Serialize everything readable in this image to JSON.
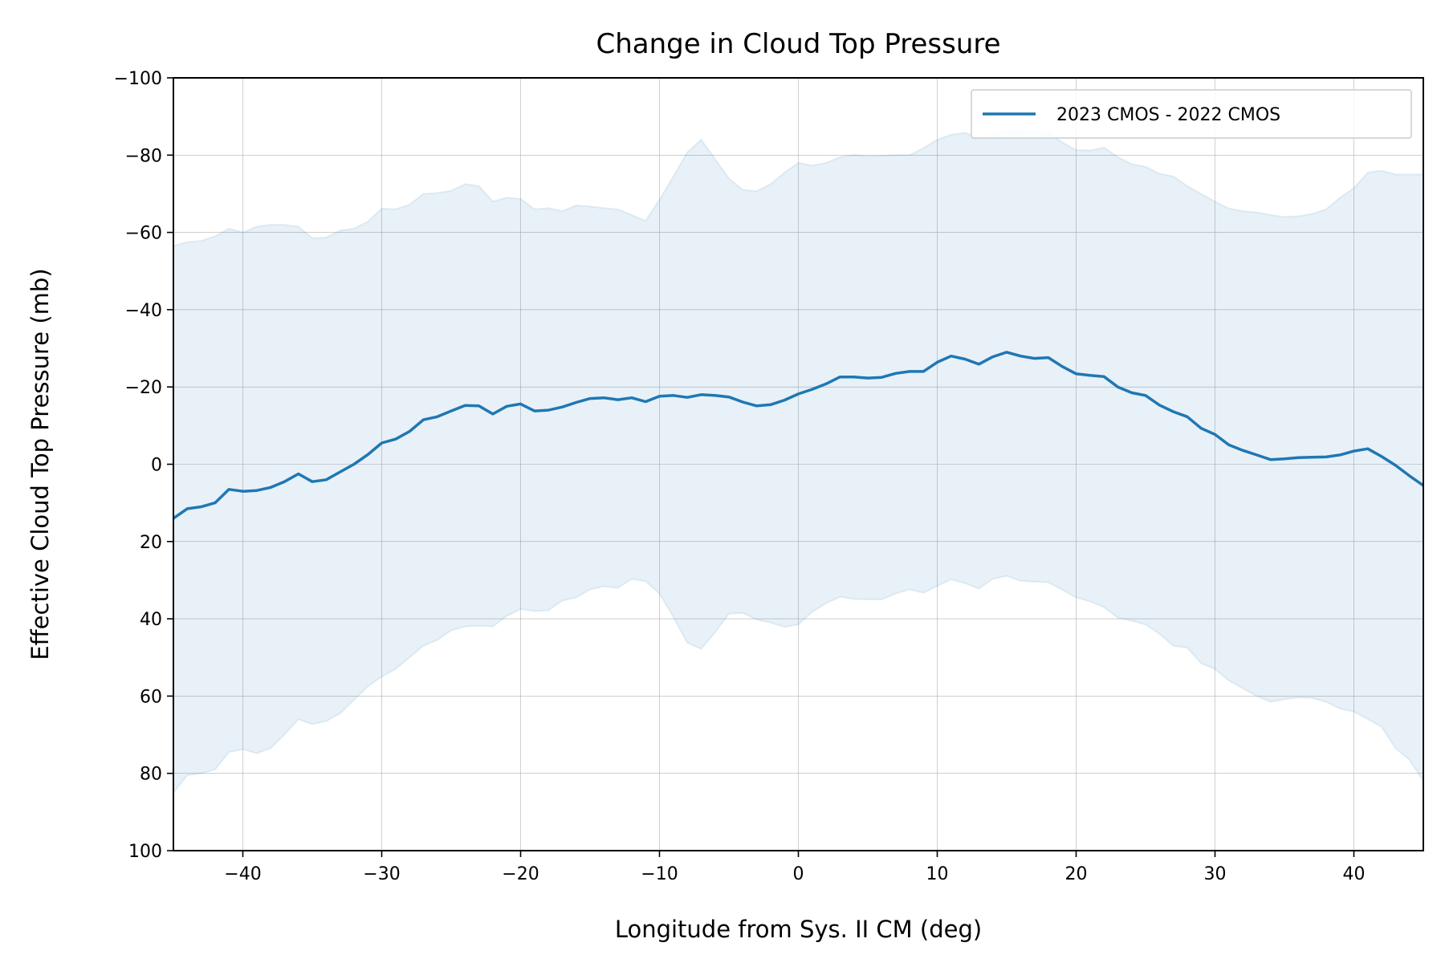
{
  "chart_data": {
    "type": "line",
    "title": "Change in Cloud Top Pressure",
    "xlabel": "Longitude from Sys. II CM (deg)",
    "ylabel": "Effective Cloud Top Pressure (mb)",
    "xlim": [
      -45,
      45
    ],
    "ylim": [
      100,
      -100
    ],
    "y_inverted": true,
    "grid": true,
    "legend_position": "top-right",
    "x_ticks": [
      -40,
      -30,
      -20,
      -10,
      0,
      10,
      20,
      30,
      40
    ],
    "x_tick_labels": [
      "−40",
      "−30",
      "−20",
      "−10",
      "0",
      "10",
      "20",
      "30",
      "40"
    ],
    "y_ticks": [
      -100,
      -80,
      -60,
      -40,
      -20,
      0,
      20,
      40,
      60,
      80,
      100
    ],
    "y_tick_labels": [
      "−100",
      "−80",
      "−60",
      "−40",
      "−20",
      "0",
      "20",
      "40",
      "60",
      "80",
      "100"
    ],
    "colors": {
      "line": "#1f77b4",
      "band": "#1f77b4"
    },
    "series": [
      {
        "name": "2023 CMOS - 2022 CMOS",
        "x": [
          -45,
          -44,
          -43,
          -42,
          -41,
          -40,
          -39,
          -38,
          -37,
          -36,
          -35,
          -34,
          -33,
          -32,
          -31,
          -30,
          -29,
          -28,
          -27,
          -26,
          -25,
          -24,
          -23,
          -22,
          -21,
          -20,
          -19,
          -18,
          -17,
          -16,
          -15,
          -14,
          -13,
          -12,
          -11,
          -10,
          -9,
          -8,
          -7,
          -6,
          -5,
          -4,
          -3,
          -2,
          -1,
          0,
          1,
          2,
          3,
          4,
          5,
          6,
          7,
          8,
          9,
          10,
          11,
          12,
          13,
          14,
          15,
          16,
          17,
          18,
          19,
          20,
          21,
          22,
          23,
          24,
          25,
          26,
          27,
          28,
          29,
          30,
          31,
          32,
          33,
          34,
          35,
          36,
          37,
          38,
          39,
          40,
          41,
          42,
          43,
          44,
          45
        ],
        "y": [
          14,
          11.5,
          11,
          10,
          6.5,
          7,
          6.8,
          6,
          4.5,
          2.5,
          4.5,
          4,
          2,
          0,
          -2.5,
          -5.5,
          -6.5,
          -8.5,
          -11.5,
          -12.3,
          -13.8,
          -15.2,
          -15.1,
          -13,
          -15,
          -15.6,
          -13.8,
          -14,
          -14.8,
          -16,
          -17,
          -17.2,
          -16.7,
          -17.2,
          -16.2,
          -17.6,
          -17.8,
          -17.3,
          -18,
          -17.8,
          -17.4,
          -16.1,
          -15.1,
          -15.4,
          -16.6,
          -18.2,
          -19.4,
          -20.8,
          -22.6,
          -22.6,
          -22.3,
          -22.5,
          -23.5,
          -24,
          -24,
          -26.4,
          -28,
          -27.2,
          -25.9,
          -27.8,
          -29,
          -28,
          -27.4,
          -27.6,
          -25.3,
          -23.4,
          -23,
          -22.7,
          -20,
          -18.5,
          -17.8,
          -15.3,
          -13.6,
          -12.3,
          -9.3,
          -7.7,
          -5,
          -3.6,
          -2.4,
          -1.2,
          -1.4,
          -1.7,
          -1.8,
          -1.9,
          -2.4,
          -3.4,
          -4,
          -2,
          0.3,
          3,
          5.5
        ],
        "band_lower": [
          85,
          80.5,
          80,
          79,
          74.5,
          73.8,
          74.8,
          73.5,
          70,
          66,
          67.3,
          66.5,
          64.5,
          61,
          57.5,
          55,
          53,
          50,
          47,
          45.5,
          43,
          42,
          41.8,
          42,
          39.3,
          37.5,
          38,
          37.8,
          35.3,
          34.5,
          32.4,
          31.6,
          32,
          29.7,
          30.3,
          33.5,
          39.5,
          46.2,
          47.8,
          43.5,
          38.7,
          38.5,
          40.2,
          41,
          42.1,
          41.5,
          38.2,
          36,
          34.3,
          34.9,
          35,
          35,
          33.5,
          32.4,
          33.3,
          31.5,
          29.8,
          30.8,
          32.2,
          29.7,
          28.9,
          30.2,
          30.4,
          30.6,
          32.5,
          34.5,
          35.5,
          37,
          39.7,
          40.5,
          41.5,
          43.9,
          47,
          47.5,
          51.5,
          53,
          56,
          58,
          60,
          61.5,
          60.8,
          60.4,
          60.5,
          61.5,
          63.3,
          64,
          66,
          68,
          73.5,
          76.5,
          82,
          86
        ],
        "band_upper": [
          -56.5,
          -57.5,
          -57.8,
          -59,
          -61,
          -60,
          -61.5,
          -62,
          -62,
          -61.5,
          -58.5,
          -58.7,
          -60.5,
          -61,
          -62.8,
          -66.2,
          -66,
          -67.2,
          -70,
          -70.2,
          -70.8,
          -72.5,
          -72,
          -68,
          -69,
          -68.7,
          -66,
          -66.3,
          -65.5,
          -67,
          -66.7,
          -66.3,
          -66,
          -64.5,
          -63,
          -68.5,
          -74.5,
          -80.7,
          -84,
          -79,
          -74,
          -71,
          -70.7,
          -72.5,
          -75.5,
          -78,
          -77.3,
          -78,
          -79.5,
          -80,
          -79.7,
          -79.8,
          -80,
          -80,
          -81.8,
          -84,
          -85.3,
          -85.8,
          -84.5,
          -85.3,
          -86.3,
          -86.3,
          -86,
          -85.8,
          -83.3,
          -81.3,
          -81.2,
          -82,
          -79.5,
          -77.7,
          -77,
          -75.2,
          -74.5,
          -72,
          -70,
          -68,
          -66.2,
          -65.5,
          -65.2,
          -64.5,
          -64,
          -64.2,
          -64.8,
          -66,
          -69,
          -71.5,
          -75.5,
          -76,
          -75,
          -75,
          -75
        ]
      }
    ]
  }
}
